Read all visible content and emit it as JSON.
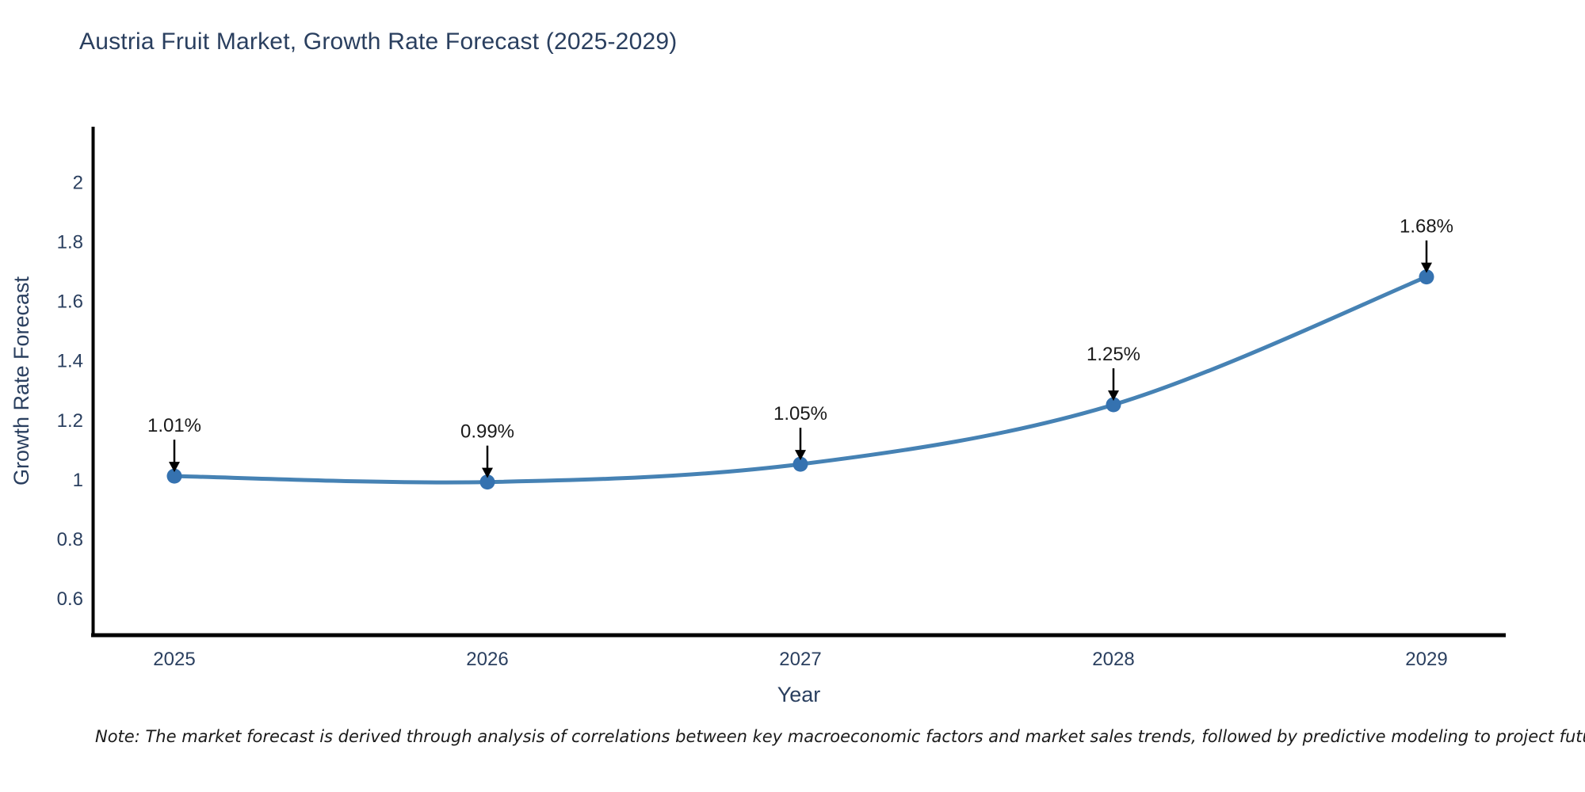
{
  "chart_data": {
    "type": "line",
    "title": "Austria Fruit Market, Growth Rate Forecast (2025-2029)",
    "xlabel": "Year",
    "ylabel": "Growth Rate Forecast",
    "x": [
      2025,
      2026,
      2027,
      2028,
      2029
    ],
    "series": [
      {
        "name": "Growth Rate Forecast",
        "values": [
          1.01,
          0.99,
          1.05,
          1.25,
          1.68
        ]
      }
    ],
    "point_labels": [
      "1.01%",
      "0.99%",
      "1.05%",
      "1.25%",
      "1.68%"
    ],
    "yticks": [
      0.6,
      0.8,
      1,
      1.2,
      1.4,
      1.6,
      1.8,
      2
    ],
    "ylim": [
      0.475,
      2.185
    ],
    "grid": false,
    "legend_position": "none",
    "line_color": "#4682b4",
    "marker_color": "#3572b0",
    "arrow_color": "#000000",
    "axis_color": "#000000",
    "axis_text_color": "#2a3f5f",
    "annotation_text_color": "#1a1a1a"
  },
  "note": "Note: The market forecast is derived through analysis of correlations between key macroeconomic factors and market sales trends, followed by predictive modeling to project future sales"
}
